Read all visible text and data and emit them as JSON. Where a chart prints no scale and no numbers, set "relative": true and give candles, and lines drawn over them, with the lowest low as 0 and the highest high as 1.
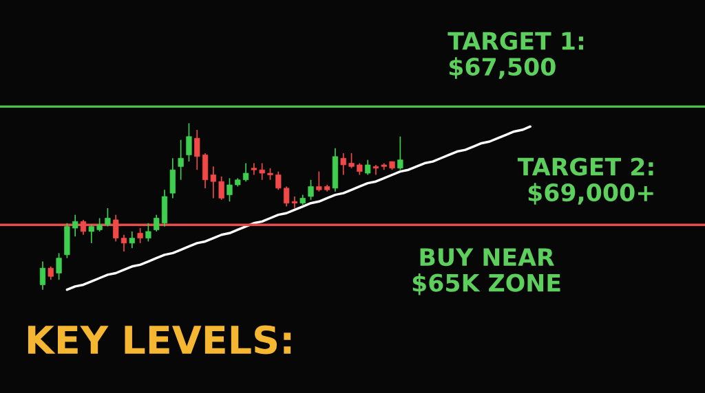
{
  "chart_data": {
    "type": "candlestick",
    "title": "KEY LEVELS:",
    "relative": true,
    "categories": [
      null,
      null,
      null,
      null,
      null,
      null,
      null,
      null,
      null,
      null,
      null,
      null,
      null,
      null,
      null,
      null,
      null,
      null,
      null,
      null,
      null,
      null,
      null,
      null,
      null,
      null,
      null,
      null,
      null,
      null,
      null,
      null,
      null,
      null,
      null,
      null,
      null,
      null,
      null,
      null,
      null,
      null,
      null,
      null,
      null,
      null,
      null,
      null,
      null,
      null,
      null,
      null,
      null,
      null,
      null,
      null,
      null,
      null,
      null,
      null,
      null
    ],
    "ohlc": [
      [
        0.03,
        0.17,
        0.0,
        0.13
      ],
      [
        0.13,
        0.14,
        0.06,
        0.08
      ],
      [
        0.1,
        0.22,
        0.06,
        0.19
      ],
      [
        0.21,
        0.4,
        0.19,
        0.38
      ],
      [
        0.37,
        0.45,
        0.32,
        0.41
      ],
      [
        0.41,
        0.42,
        0.33,
        0.35
      ],
      [
        0.35,
        0.39,
        0.28,
        0.38
      ],
      [
        0.36,
        0.43,
        0.35,
        0.39
      ],
      [
        0.39,
        0.49,
        0.38,
        0.43
      ],
      [
        0.42,
        0.45,
        0.29,
        0.31
      ],
      [
        0.31,
        0.33,
        0.23,
        0.28
      ],
      [
        0.28,
        0.35,
        0.25,
        0.31
      ],
      [
        0.34,
        0.37,
        0.28,
        0.31
      ],
      [
        0.31,
        0.4,
        0.29,
        0.35
      ],
      [
        0.36,
        0.45,
        0.35,
        0.43
      ],
      [
        0.4,
        0.6,
        0.38,
        0.56
      ],
      [
        0.58,
        0.79,
        0.55,
        0.72
      ],
      [
        0.74,
        0.9,
        0.66,
        0.79
      ],
      [
        0.81,
        1.0,
        0.77,
        0.92
      ],
      [
        0.91,
        0.96,
        0.72,
        0.8
      ],
      [
        0.81,
        0.82,
        0.61,
        0.66
      ],
      [
        0.69,
        0.74,
        0.55,
        0.65
      ],
      [
        0.65,
        0.68,
        0.54,
        0.55
      ],
      [
        0.57,
        0.67,
        0.53,
        0.63
      ],
      [
        0.63,
        0.67,
        0.62,
        0.66
      ],
      [
        0.66,
        0.76,
        0.65,
        0.7
      ],
      [
        0.73,
        0.76,
        0.69,
        0.72
      ],
      [
        0.72,
        0.76,
        0.66,
        0.7
      ],
      [
        0.7,
        0.73,
        0.66,
        0.69
      ],
      [
        0.69,
        0.71,
        0.6,
        0.61
      ],
      [
        0.61,
        0.62,
        0.5,
        0.52
      ],
      [
        0.53,
        0.56,
        0.49,
        0.52
      ],
      [
        0.52,
        0.57,
        0.51,
        0.55
      ],
      [
        0.56,
        0.66,
        0.54,
        0.62
      ],
      [
        0.62,
        0.71,
        0.59,
        0.6
      ],
      [
        0.62,
        0.63,
        0.59,
        0.6
      ],
      [
        0.61,
        0.85,
        0.59,
        0.8
      ],
      [
        0.79,
        0.82,
        0.69,
        0.75
      ],
      [
        0.76,
        0.82,
        0.73,
        0.74
      ],
      [
        0.75,
        0.76,
        0.69,
        0.71
      ],
      [
        0.7,
        0.78,
        0.69,
        0.75
      ],
      [
        0.74,
        0.75,
        0.69,
        0.73
      ],
      [
        0.75,
        0.76,
        0.72,
        0.74
      ],
      [
        0.77,
        0.77,
        0.72,
        0.73
      ],
      [
        0.73,
        0.92,
        0.72,
        0.78
      ],
      null,
      null,
      null,
      null,
      null,
      null,
      null,
      null,
      null,
      null,
      null,
      null,
      null,
      null,
      null,
      null
    ],
    "series": [
      {
        "type": "line",
        "color": "#ffffff",
        "values": [
          null,
          null,
          null,
          0.0,
          0.02,
          0.03,
          0.05,
          0.07,
          0.09,
          0.1,
          0.12,
          0.14,
          0.15,
          0.17,
          0.19,
          0.21,
          0.22,
          0.24,
          0.26,
          0.28,
          0.29,
          0.31,
          0.33,
          0.34,
          0.36,
          0.38,
          0.4,
          0.41,
          0.43,
          0.45,
          0.46,
          0.48,
          0.5,
          0.52,
          0.53,
          0.55,
          0.57,
          0.58,
          0.6,
          0.62,
          0.64,
          0.65,
          0.67,
          0.69,
          0.71,
          0.72,
          0.74,
          0.76,
          0.77,
          0.79,
          0.81,
          0.83,
          0.84,
          0.86,
          0.88,
          0.89,
          0.91,
          0.93,
          0.95,
          0.96,
          0.98
        ]
      }
    ],
    "ref_lines": [
      {
        "axis": "y",
        "value": 1.1,
        "color": "#4cc94c"
      },
      {
        "axis": "y",
        "value": 0.39,
        "color": "#e84c4c"
      }
    ],
    "annotations": [
      "TARGET 1:\n$67,500",
      "TARGET 2:\n$69,000+",
      "BUY NEAR\n$65K ZONE"
    ]
  }
}
